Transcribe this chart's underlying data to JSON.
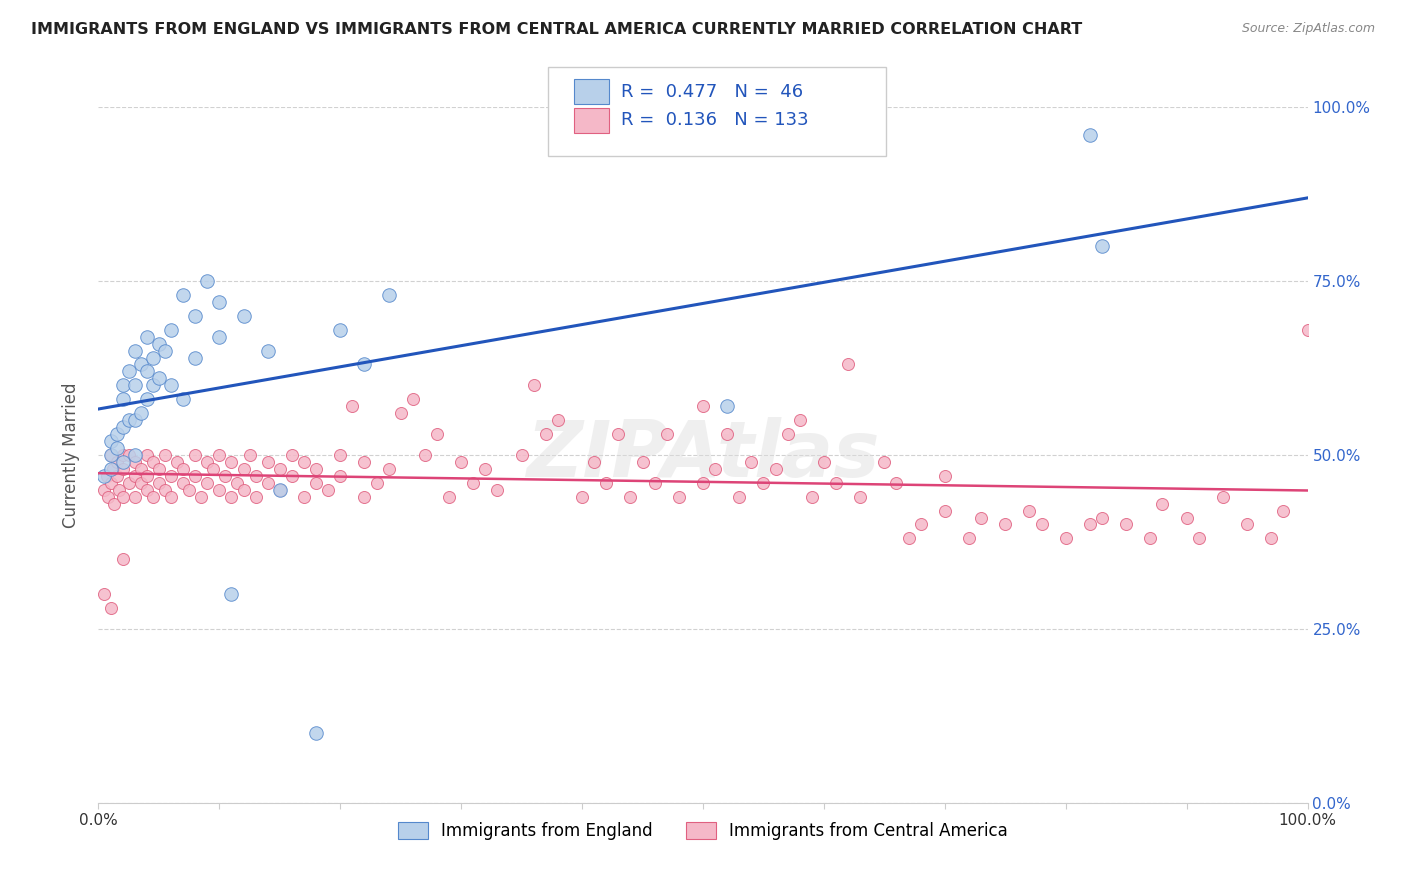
{
  "title": "IMMIGRANTS FROM ENGLAND VS IMMIGRANTS FROM CENTRAL AMERICA CURRENTLY MARRIED CORRELATION CHART",
  "source": "Source: ZipAtlas.com",
  "ylabel": "Currently Married",
  "ytick_labels": [
    "0.0%",
    "25.0%",
    "50.0%",
    "75.0%",
    "100.0%"
  ],
  "ytick_positions": [
    0.0,
    0.25,
    0.5,
    0.75,
    1.0
  ],
  "england_fill_color": "#b8d0ea",
  "england_edge_color": "#5588cc",
  "ca_fill_color": "#f5b8c8",
  "ca_edge_color": "#e06080",
  "england_line_color": "#2255bb",
  "ca_line_color": "#dd4477",
  "england_R": 0.477,
  "england_N": 46,
  "ca_R": 0.136,
  "ca_N": 133,
  "legend_label_england": "Immigrants from England",
  "legend_label_ca": "Immigrants from Central America",
  "watermark": "ZIPAtlas",
  "background_color": "#ffffff",
  "grid_color": "#cccccc",
  "title_color": "#222222",
  "right_axis_color": "#3366cc",
  "title_fontsize": 11.5,
  "source_fontsize": 9,
  "legend_fontsize": 13,
  "axis_label_fontsize": 11,
  "england_x": [
    0.005,
    0.01,
    0.01,
    0.01,
    0.015,
    0.015,
    0.02,
    0.02,
    0.02,
    0.02,
    0.025,
    0.025,
    0.03,
    0.03,
    0.03,
    0.03,
    0.035,
    0.035,
    0.04,
    0.04,
    0.04,
    0.045,
    0.045,
    0.05,
    0.05,
    0.055,
    0.06,
    0.06,
    0.07,
    0.07,
    0.08,
    0.08,
    0.09,
    0.1,
    0.1,
    0.11,
    0.12,
    0.14,
    0.15,
    0.18,
    0.2,
    0.22,
    0.24,
    0.52,
    0.82,
    0.83
  ],
  "england_y": [
    0.47,
    0.5,
    0.48,
    0.52,
    0.51,
    0.53,
    0.49,
    0.54,
    0.58,
    0.6,
    0.55,
    0.62,
    0.5,
    0.55,
    0.6,
    0.65,
    0.56,
    0.63,
    0.58,
    0.62,
    0.67,
    0.6,
    0.64,
    0.61,
    0.66,
    0.65,
    0.6,
    0.68,
    0.58,
    0.73,
    0.64,
    0.7,
    0.75,
    0.67,
    0.72,
    0.3,
    0.7,
    0.65,
    0.45,
    0.1,
    0.68,
    0.63,
    0.73,
    0.57,
    0.96,
    0.8
  ],
  "ca_x": [
    0.005,
    0.007,
    0.008,
    0.01,
    0.01,
    0.012,
    0.013,
    0.015,
    0.015,
    0.017,
    0.02,
    0.02,
    0.02,
    0.025,
    0.025,
    0.03,
    0.03,
    0.03,
    0.035,
    0.035,
    0.04,
    0.04,
    0.04,
    0.045,
    0.045,
    0.05,
    0.05,
    0.055,
    0.055,
    0.06,
    0.06,
    0.065,
    0.07,
    0.07,
    0.075,
    0.08,
    0.08,
    0.085,
    0.09,
    0.09,
    0.095,
    0.1,
    0.1,
    0.105,
    0.11,
    0.11,
    0.115,
    0.12,
    0.12,
    0.125,
    0.13,
    0.13,
    0.14,
    0.14,
    0.15,
    0.15,
    0.16,
    0.16,
    0.17,
    0.17,
    0.18,
    0.18,
    0.19,
    0.2,
    0.2,
    0.21,
    0.22,
    0.22,
    0.23,
    0.24,
    0.25,
    0.26,
    0.27,
    0.28,
    0.29,
    0.3,
    0.31,
    0.32,
    0.33,
    0.35,
    0.36,
    0.37,
    0.38,
    0.4,
    0.41,
    0.42,
    0.43,
    0.44,
    0.45,
    0.46,
    0.47,
    0.48,
    0.5,
    0.5,
    0.51,
    0.52,
    0.53,
    0.54,
    0.55,
    0.56,
    0.57,
    0.58,
    0.59,
    0.6,
    0.61,
    0.62,
    0.63,
    0.65,
    0.66,
    0.67,
    0.68,
    0.7,
    0.72,
    0.73,
    0.75,
    0.77,
    0.78,
    0.8,
    0.82,
    0.83,
    0.85,
    0.87,
    0.88,
    0.9,
    0.91,
    0.93,
    0.95,
    0.97,
    0.98,
    1.0,
    0.005,
    0.01,
    0.02,
    0.7
  ],
  "ca_y": [
    0.45,
    0.47,
    0.44,
    0.46,
    0.5,
    0.48,
    0.43,
    0.47,
    0.49,
    0.45,
    0.5,
    0.44,
    0.48,
    0.46,
    0.5,
    0.44,
    0.47,
    0.49,
    0.46,
    0.48,
    0.45,
    0.5,
    0.47,
    0.44,
    0.49,
    0.46,
    0.48,
    0.45,
    0.5,
    0.47,
    0.44,
    0.49,
    0.46,
    0.48,
    0.45,
    0.5,
    0.47,
    0.44,
    0.49,
    0.46,
    0.48,
    0.45,
    0.5,
    0.47,
    0.44,
    0.49,
    0.46,
    0.48,
    0.45,
    0.5,
    0.47,
    0.44,
    0.49,
    0.46,
    0.48,
    0.45,
    0.5,
    0.47,
    0.44,
    0.49,
    0.46,
    0.48,
    0.45,
    0.5,
    0.47,
    0.57,
    0.44,
    0.49,
    0.46,
    0.48,
    0.56,
    0.58,
    0.5,
    0.53,
    0.44,
    0.49,
    0.46,
    0.48,
    0.45,
    0.5,
    0.6,
    0.53,
    0.55,
    0.44,
    0.49,
    0.46,
    0.53,
    0.44,
    0.49,
    0.46,
    0.53,
    0.44,
    0.57,
    0.46,
    0.48,
    0.53,
    0.44,
    0.49,
    0.46,
    0.48,
    0.53,
    0.55,
    0.44,
    0.49,
    0.46,
    0.63,
    0.44,
    0.49,
    0.46,
    0.38,
    0.4,
    0.42,
    0.38,
    0.41,
    0.4,
    0.42,
    0.4,
    0.38,
    0.4,
    0.41,
    0.4,
    0.38,
    0.43,
    0.41,
    0.38,
    0.44,
    0.4,
    0.38,
    0.42,
    0.68,
    0.3,
    0.28,
    0.35,
    0.47
  ]
}
